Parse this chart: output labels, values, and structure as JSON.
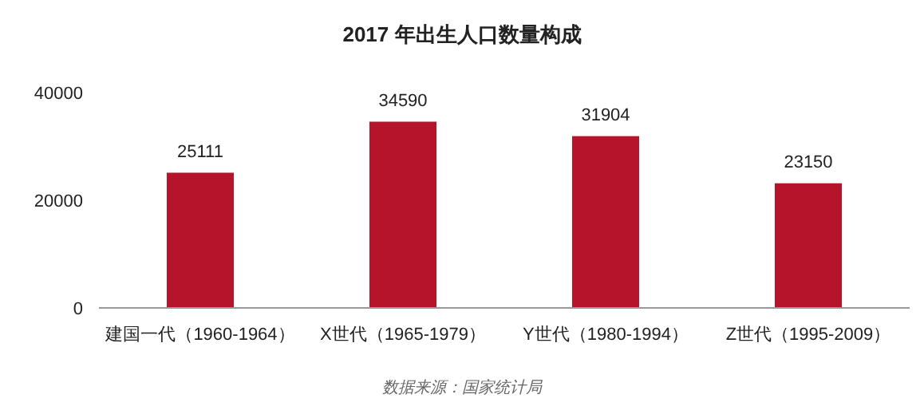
{
  "chart_data": {
    "type": "bar",
    "title": "2017 年出生人口数量构成",
    "categories": [
      "建国一代（1960-1964）",
      "X世代（1965-1979）",
      "Y世代（1980-1994）",
      "Z世代（1995-2009）"
    ],
    "values": [
      25111,
      34590,
      31904,
      23150
    ],
    "color": "#b5142b",
    "ylim": [
      0,
      40000
    ],
    "yticks": [
      0,
      20000,
      40000
    ],
    "data_labels": true,
    "annotations": [
      "数据来源：国家统计局"
    ]
  }
}
